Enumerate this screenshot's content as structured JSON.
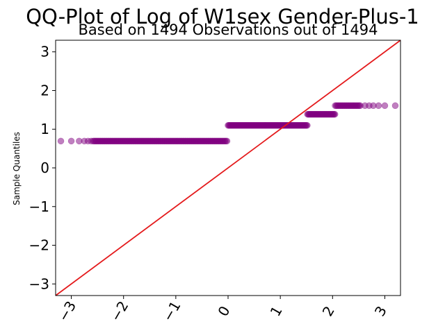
{
  "chart_data": {
    "type": "scatter",
    "title": "QQ-Plot of Log of W1sex Gender-Plus-1",
    "subtitle": "Based on 1494 Observations out of 1494",
    "xlabel": "",
    "ylabel": "Sample Quantiles",
    "xlim": [
      -3.3,
      3.3
    ],
    "ylim": [
      -3.3,
      3.3
    ],
    "xticks": [
      -3,
      -2,
      -1,
      0,
      1,
      2,
      3
    ],
    "yticks": [
      -3,
      -2,
      -1,
      0,
      1,
      2,
      3
    ],
    "xtick_labels": [
      "−3",
      "−2",
      "−1",
      "0",
      "1",
      "2",
      "3"
    ],
    "ytick_labels": [
      "−3",
      "−2",
      "−1",
      "0",
      "1",
      "2",
      "3"
    ],
    "grid": false,
    "point_color": "#800080",
    "line_color": "#e41a1c",
    "reference_line": {
      "slope": 1,
      "intercept": 0
    },
    "series": [
      {
        "y": 0.693,
        "x_start": -3.2,
        "x_end": 0.0,
        "sparse_below": -2.6
      },
      {
        "y": 1.099,
        "x_start": 0.0,
        "x_end": 1.52,
        "sparse_below": null
      },
      {
        "y": 1.386,
        "x_start": 1.52,
        "x_end": 2.05,
        "sparse_below": null
      },
      {
        "y": 1.609,
        "x_start": 2.05,
        "x_end": 3.2,
        "sparse_above": 2.5
      }
    ]
  }
}
